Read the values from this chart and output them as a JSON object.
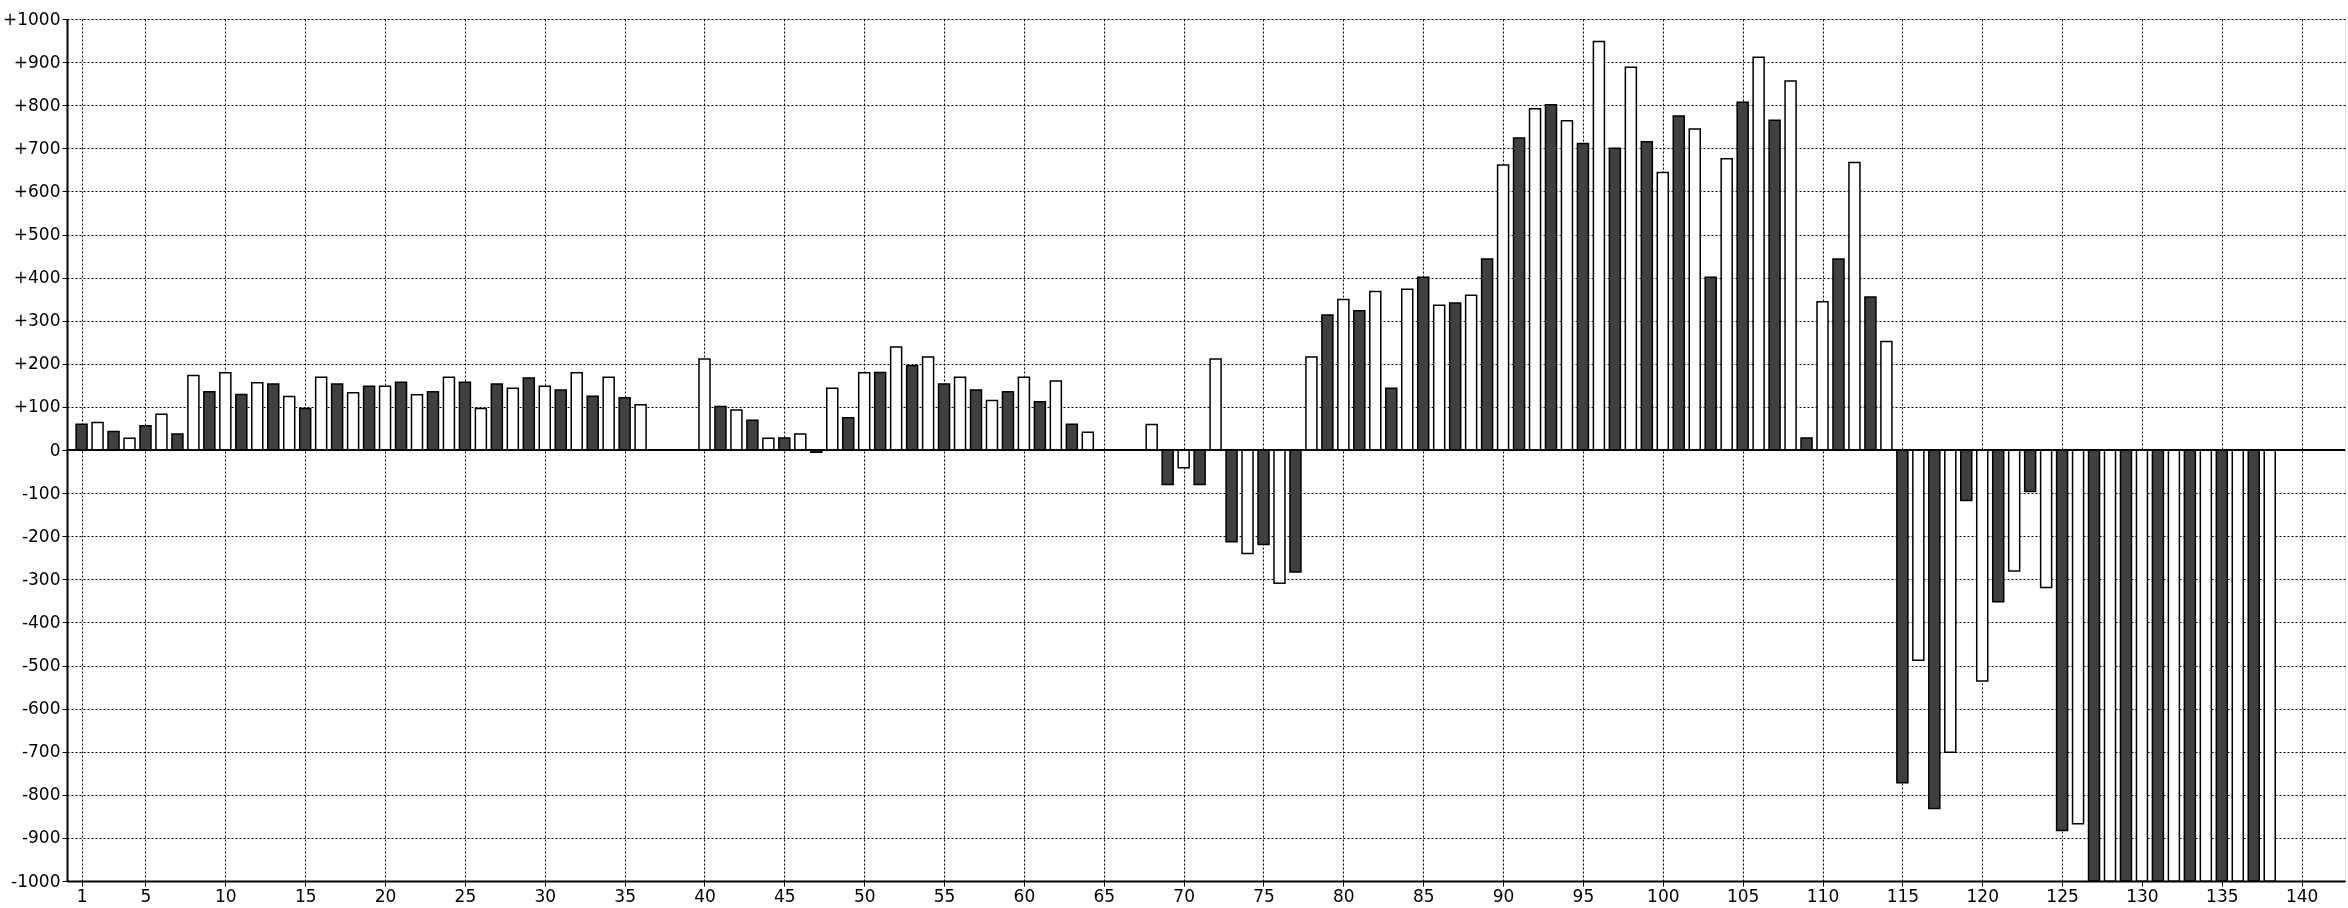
{
  "chart_data": {
    "type": "bar",
    "x": [
      1,
      2,
      3,
      4,
      5,
      6,
      7,
      8,
      9,
      10,
      11,
      12,
      13,
      14,
      15,
      16,
      17,
      18,
      19,
      20,
      21,
      22,
      23,
      24,
      25,
      26,
      27,
      28,
      29,
      30,
      31,
      32,
      33,
      34,
      35,
      36,
      37,
      38,
      39,
      40,
      41,
      42,
      43,
      44,
      45,
      46,
      47,
      48,
      49,
      50,
      51,
      52,
      53,
      54,
      55,
      56,
      57,
      58,
      59,
      60,
      61,
      62,
      63,
      64,
      65,
      66,
      67,
      68,
      69,
      70,
      71,
      72,
      73,
      74,
      75,
      76,
      77,
      78,
      79,
      80,
      81,
      82,
      83,
      84,
      85,
      86,
      87,
      88,
      89,
      90,
      91,
      92,
      93,
      94,
      95,
      96,
      97,
      98,
      99,
      100,
      101,
      102,
      103,
      104,
      105,
      106,
      107,
      108,
      109,
      110,
      111,
      112,
      113,
      114,
      115,
      116,
      117,
      118,
      119,
      120,
      121,
      122,
      123,
      124,
      125,
      126,
      127,
      128,
      129,
      130,
      131,
      132,
      133,
      134,
      135,
      136,
      137,
      138
    ],
    "values": [
      60,
      64,
      43,
      27,
      56,
      83,
      37,
      173,
      135,
      179,
      129,
      156,
      153,
      124,
      96,
      169,
      153,
      133,
      148,
      148,
      157,
      128,
      135,
      169,
      157,
      96,
      153,
      143,
      167,
      148,
      139,
      179,
      125,
      169,
      121,
      105,
      null,
      null,
      null,
      211,
      101,
      93,
      69,
      27,
      28,
      37,
      -5,
      143,
      75,
      179,
      180,
      239,
      196,
      216,
      153,
      169,
      139,
      115,
      135,
      169,
      112,
      160,
      60,
      41,
      null,
      null,
      null,
      59,
      -80,
      -41,
      -80,
      211,
      -213,
      -240,
      -219,
      -309,
      -283,
      216,
      313,
      349,
      323,
      368,
      143,
      373,
      401,
      336,
      341,
      359,
      443,
      661,
      724,
      792,
      801,
      764,
      711,
      948,
      700,
      888,
      715,
      644,
      775,
      745,
      401,
      676,
      807,
      911,
      765,
      856,
      28,
      344,
      443,
      667,
      355,
      252,
      -772,
      -488,
      -832,
      -701,
      -117,
      -536,
      -352,
      -281,
      -96,
      -319,
      -883,
      -867,
      -1000,
      -1000,
      -1000,
      -1000,
      -1000,
      -1000,
      -1000,
      -1000,
      -1000,
      -1000,
      -1000,
      -1000
    ],
    "colors": [
      "#404040",
      "#ffffff",
      "#404040",
      "#ffffff",
      "#404040",
      "#ffffff",
      "#404040",
      "#ffffff",
      "#404040",
      "#ffffff",
      "#404040",
      "#ffffff",
      "#404040",
      "#ffffff",
      "#404040",
      "#ffffff",
      "#404040",
      "#ffffff",
      "#404040",
      "#ffffff",
      "#404040",
      "#ffffff",
      "#404040",
      "#ffffff",
      "#404040",
      "#ffffff",
      "#404040",
      "#ffffff",
      "#404040",
      "#ffffff",
      "#404040",
      "#ffffff",
      "#404040",
      "#ffffff",
      "#404040",
      "#ffffff",
      "#404040",
      "#ffffff",
      "#404040",
      "#ffffff",
      "#404040",
      "#ffffff",
      "#404040",
      "#ffffff",
      "#404040",
      "#ffffff",
      "#404040",
      "#ffffff",
      "#404040",
      "#ffffff",
      "#404040",
      "#ffffff",
      "#404040",
      "#ffffff",
      "#404040",
      "#ffffff",
      "#404040",
      "#ffffff",
      "#404040",
      "#ffffff",
      "#404040",
      "#ffffff",
      "#404040",
      "#ffffff",
      "#404040",
      "#ffffff",
      "#404040",
      "#ffffff",
      "#404040",
      "#ffffff",
      "#404040",
      "#ffffff",
      "#404040",
      "#ffffff",
      "#404040",
      "#ffffff",
      "#404040",
      "#ffffff",
      "#404040",
      "#ffffff",
      "#404040",
      "#ffffff",
      "#404040",
      "#ffffff",
      "#404040",
      "#ffffff",
      "#404040",
      "#ffffff",
      "#404040",
      "#ffffff",
      "#404040",
      "#ffffff",
      "#404040",
      "#ffffff",
      "#404040",
      "#ffffff",
      "#404040",
      "#ffffff",
      "#404040",
      "#ffffff",
      "#404040",
      "#ffffff",
      "#404040",
      "#ffffff",
      "#404040",
      "#ffffff",
      "#404040",
      "#ffffff",
      "#404040",
      "#ffffff",
      "#404040",
      "#ffffff",
      "#404040",
      "#ffffff",
      "#404040",
      "#ffffff",
      "#404040",
      "#ffffff",
      "#404040",
      "#ffffff",
      "#404040",
      "#ffffff",
      "#404040",
      "#ffffff",
      "#404040",
      "#ffffff",
      "#404040",
      "#ffffff",
      "#404040",
      "#ffffff",
      "#404040",
      "#ffffff",
      "#404040",
      "#ffffff",
      "#404040",
      "#ffffff",
      "#404040",
      "#ffffff"
    ],
    "xlim": [
      0.4,
      142.4
    ],
    "xticks": [
      1,
      5,
      10,
      15,
      20,
      25,
      30,
      35,
      40,
      45,
      50,
      55,
      60,
      65,
      70,
      75,
      80,
      85,
      90,
      95,
      100,
      105,
      110,
      115,
      120,
      125,
      130,
      135,
      140
    ],
    "ylim": [
      -1000,
      1000
    ],
    "yticks": [
      {
        "value": -1000,
        "label": "-1000"
      },
      {
        "value": -900,
        "label": "-900"
      },
      {
        "value": -800,
        "label": "-800"
      },
      {
        "value": -700,
        "label": "-700"
      },
      {
        "value": -600,
        "label": "-600"
      },
      {
        "value": -500,
        "label": "-500"
      },
      {
        "value": -400,
        "label": "-400"
      },
      {
        "value": -300,
        "label": "-300"
      },
      {
        "value": -200,
        "label": "-200"
      },
      {
        "value": -100,
        "label": "-100"
      },
      0,
      {
        "value": 100,
        "label": "+100"
      },
      {
        "value": 200,
        "label": "+200"
      },
      {
        "value": 300,
        "label": "+300"
      },
      {
        "value": 400,
        "label": "+400"
      },
      {
        "value": 500,
        "label": "+500"
      },
      {
        "value": 600,
        "label": "+600"
      },
      {
        "value": 700,
        "label": "+700"
      },
      {
        "value": 800,
        "label": "+800"
      },
      {
        "value": 900,
        "label": "+900"
      },
      {
        "value": 1000,
        "label": "+1000"
      }
    ],
    "grid": true,
    "ref_lines": [
      {
        "axis": "y",
        "value": 0,
        "color": "#000000"
      }
    ]
  }
}
